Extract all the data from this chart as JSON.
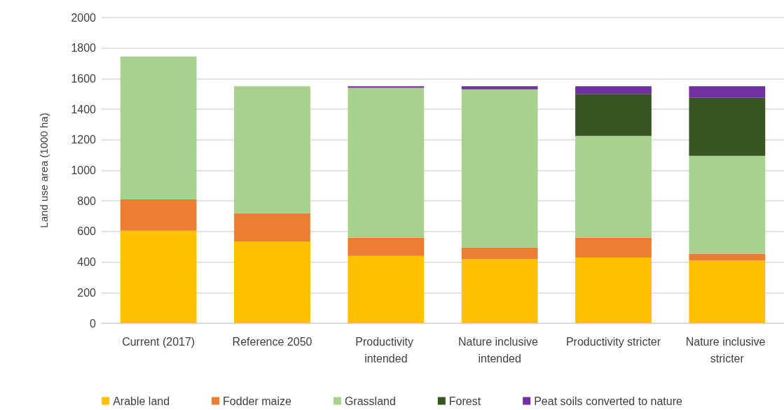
{
  "chart_data": {
    "type": "bar",
    "stacked": true,
    "ylabel": "Land use area (1000 ha)",
    "categories": [
      "Current (2017)",
      "Reference 2050",
      "Productivity intended",
      "Nature inclusive intended",
      "Productivity stricter",
      "Nature inclusive stricter"
    ],
    "series": [
      {
        "name": "Arable land",
        "color": "#ffc000",
        "values": [
          605,
          535,
          440,
          420,
          430,
          410
        ]
      },
      {
        "name": "Fodder maize",
        "color": "#ed7d31",
        "values": [
          205,
          185,
          120,
          75,
          130,
          45
        ]
      },
      {
        "name": "Grassland",
        "color": "#a9d18e",
        "values": [
          935,
          830,
          980,
          1035,
          665,
          640
        ]
      },
      {
        "name": "Forest",
        "color": "#375623",
        "values": [
          0,
          0,
          0,
          0,
          275,
          380
        ]
      },
      {
        "name": "Peat soils converted to nature",
        "color": "#7030a0",
        "values": [
          0,
          0,
          10,
          20,
          50,
          75
        ]
      }
    ],
    "ylim": [
      0,
      2000
    ],
    "yticks": [
      0,
      200,
      400,
      600,
      800,
      1000,
      1200,
      1400,
      1600,
      1800,
      2000
    ],
    "grid": "y",
    "legend": "bottom"
  }
}
